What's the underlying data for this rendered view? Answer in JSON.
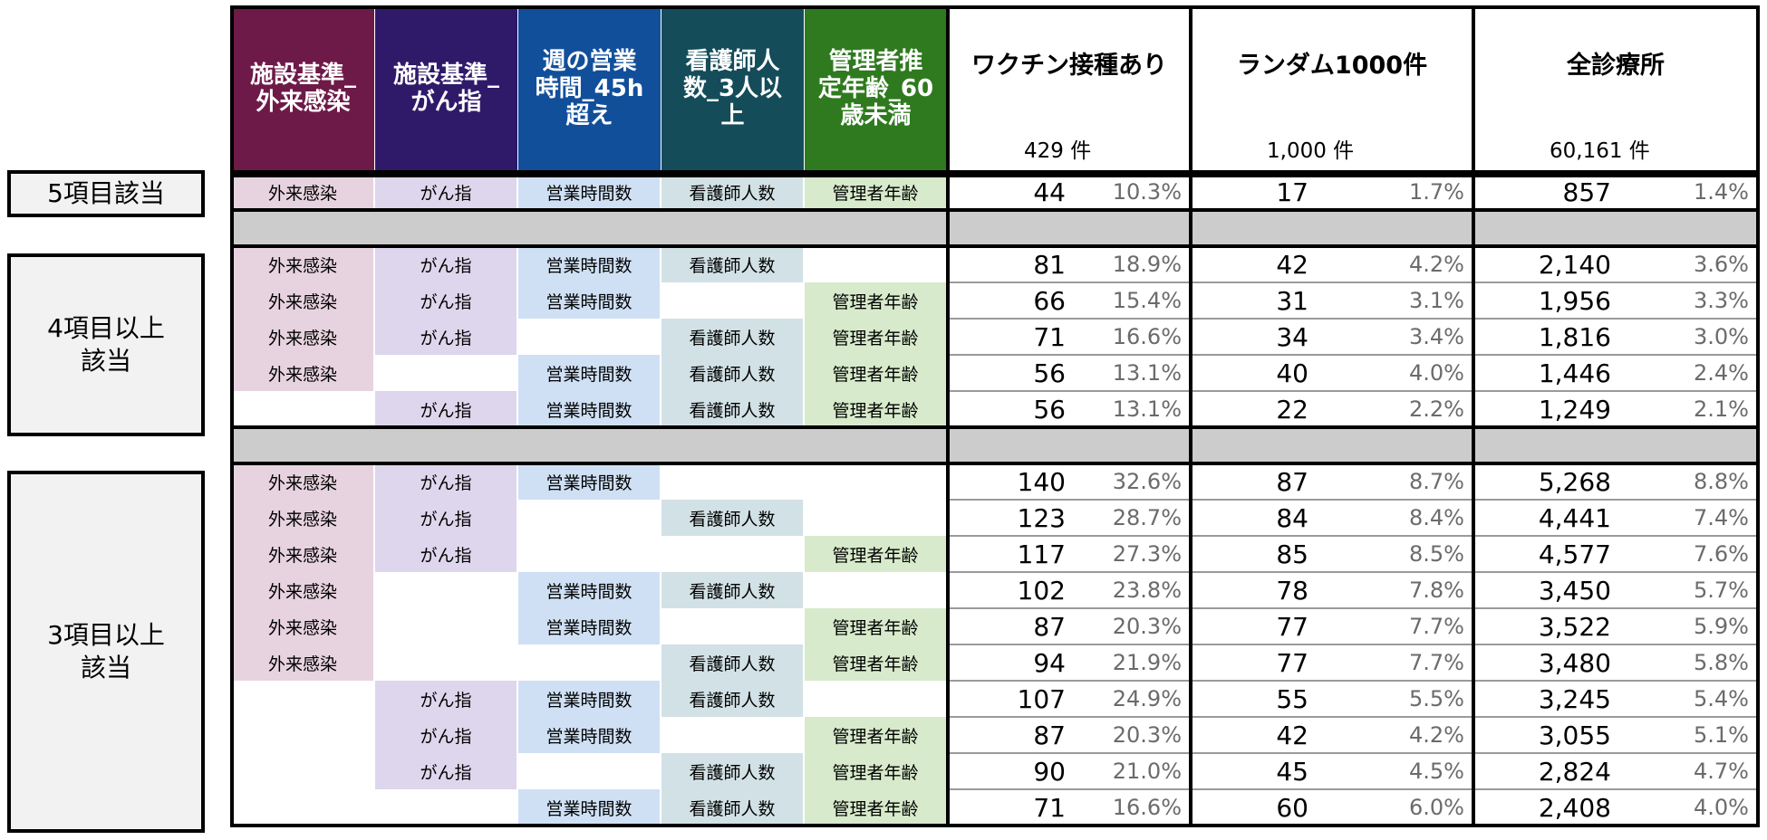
{
  "colors": {
    "h1": "#6e1a48",
    "h2": "#2f1a6a",
    "h3": "#124f9a",
    "h4": "#144c5a",
    "h5": "#2f7a1f",
    "c1": "#e7d3df",
    "c2": "#ddd6ec",
    "c3": "#cfe0f5",
    "c4": "#d2e1e5",
    "c5": "#d7eacb",
    "gray_row": "#cccccc",
    "group_bg": "#f2f2f2"
  },
  "criteria_headers": [
    "施設基準_\n外来感染",
    "施設基準_\nがん指",
    "週の営業\n時間_45h\n超え",
    "看護師人\n数_3人以\n上",
    "管理者推\n定年齢_60\n歳未満"
  ],
  "criteria_short": [
    "外来感染",
    "がん指",
    "営業時間数",
    "看護師人数",
    "管理者年齢"
  ],
  "groups": [
    {
      "title": "ワクチン接種あり",
      "total": "429  件"
    },
    {
      "title": "ランダム1000件",
      "total": "1,000  件"
    },
    {
      "title": "全診療所",
      "total": "60,161  件"
    }
  ],
  "row_groups": [
    {
      "label": "5項目該当"
    },
    {
      "label": "4項目以上\n該当"
    },
    {
      "label": "3項目以上\n該当"
    }
  ],
  "rows": [
    {
      "flags": [
        1,
        1,
        1,
        1,
        1
      ],
      "vals": [
        [
          "44",
          "10.3%"
        ],
        [
          "17",
          "1.7%"
        ],
        [
          "857",
          "1.4%"
        ]
      ]
    },
    {
      "separator": true
    },
    {
      "flags": [
        1,
        1,
        1,
        1,
        0
      ],
      "vals": [
        [
          "81",
          "18.9%"
        ],
        [
          "42",
          "4.2%"
        ],
        [
          "2,140",
          "3.6%"
        ]
      ]
    },
    {
      "flags": [
        1,
        1,
        1,
        0,
        1
      ],
      "vals": [
        [
          "66",
          "15.4%"
        ],
        [
          "31",
          "3.1%"
        ],
        [
          "1,956",
          "3.3%"
        ]
      ]
    },
    {
      "flags": [
        1,
        1,
        0,
        1,
        1
      ],
      "vals": [
        [
          "71",
          "16.6%"
        ],
        [
          "34",
          "3.4%"
        ],
        [
          "1,816",
          "3.0%"
        ]
      ]
    },
    {
      "flags": [
        1,
        0,
        1,
        1,
        1
      ],
      "vals": [
        [
          "56",
          "13.1%"
        ],
        [
          "40",
          "4.0%"
        ],
        [
          "1,446",
          "2.4%"
        ]
      ]
    },
    {
      "flags": [
        0,
        1,
        1,
        1,
        1
      ],
      "vals": [
        [
          "56",
          "13.1%"
        ],
        [
          "22",
          "2.2%"
        ],
        [
          "1,249",
          "2.1%"
        ]
      ]
    },
    {
      "separator": true
    },
    {
      "flags": [
        1,
        1,
        1,
        0,
        0
      ],
      "vals": [
        [
          "140",
          "32.6%"
        ],
        [
          "87",
          "8.7%"
        ],
        [
          "5,268",
          "8.8%"
        ]
      ]
    },
    {
      "flags": [
        1,
        1,
        0,
        1,
        0
      ],
      "vals": [
        [
          "123",
          "28.7%"
        ],
        [
          "84",
          "8.4%"
        ],
        [
          "4,441",
          "7.4%"
        ]
      ]
    },
    {
      "flags": [
        1,
        1,
        0,
        0,
        1
      ],
      "vals": [
        [
          "117",
          "27.3%"
        ],
        [
          "85",
          "8.5%"
        ],
        [
          "4,577",
          "7.6%"
        ]
      ]
    },
    {
      "flags": [
        1,
        0,
        1,
        1,
        0
      ],
      "vals": [
        [
          "102",
          "23.8%"
        ],
        [
          "78",
          "7.8%"
        ],
        [
          "3,450",
          "5.7%"
        ]
      ]
    },
    {
      "flags": [
        1,
        0,
        1,
        0,
        1
      ],
      "vals": [
        [
          "87",
          "20.3%"
        ],
        [
          "77",
          "7.7%"
        ],
        [
          "3,522",
          "5.9%"
        ]
      ]
    },
    {
      "flags": [
        1,
        0,
        0,
        1,
        1
      ],
      "vals": [
        [
          "94",
          "21.9%"
        ],
        [
          "77",
          "7.7%"
        ],
        [
          "3,480",
          "5.8%"
        ]
      ]
    },
    {
      "flags": [
        0,
        1,
        1,
        1,
        0
      ],
      "vals": [
        [
          "107",
          "24.9%"
        ],
        [
          "55",
          "5.5%"
        ],
        [
          "3,245",
          "5.4%"
        ]
      ]
    },
    {
      "flags": [
        0,
        1,
        1,
        0,
        1
      ],
      "vals": [
        [
          "87",
          "20.3%"
        ],
        [
          "42",
          "4.2%"
        ],
        [
          "3,055",
          "5.1%"
        ]
      ]
    },
    {
      "flags": [
        0,
        1,
        0,
        1,
        1
      ],
      "vals": [
        [
          "90",
          "21.0%"
        ],
        [
          "45",
          "4.5%"
        ],
        [
          "2,824",
          "4.7%"
        ]
      ]
    },
    {
      "flags": [
        0,
        0,
        1,
        1,
        1
      ],
      "vals": [
        [
          "71",
          "16.6%"
        ],
        [
          "60",
          "6.0%"
        ],
        [
          "2,408",
          "4.0%"
        ]
      ]
    }
  ]
}
